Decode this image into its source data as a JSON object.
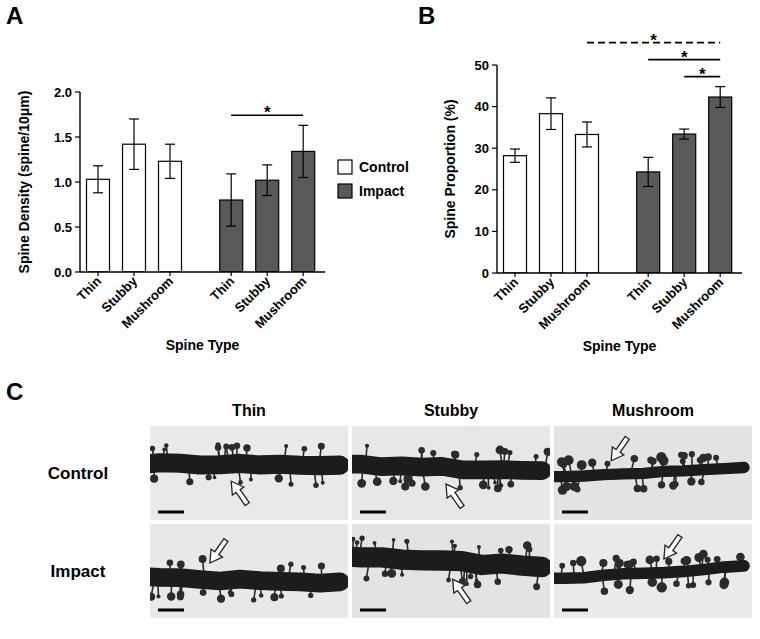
{
  "panel_labels": [
    "A",
    "B"
  ],
  "chart_data": [
    {
      "type": "bar",
      "x_label": "Spine Type",
      "y_label": "Spine Density (spine/10μm)",
      "categories": [
        "Thin",
        "Stubby",
        "Mushroom",
        "Thin",
        "Stubby",
        "Mushroom"
      ],
      "series": [
        {
          "name": "Control",
          "color": "#ffffff",
          "values": [
            1.03,
            1.42,
            1.23,
            null,
            null,
            null
          ],
          "errors": [
            0.15,
            0.28,
            0.19,
            null,
            null,
            null
          ]
        },
        {
          "name": "Impact",
          "color": "#595959",
          "values": [
            null,
            null,
            null,
            0.8,
            1.02,
            1.34
          ],
          "errors": [
            null,
            null,
            null,
            0.29,
            0.17,
            0.29
          ]
        }
      ],
      "ylim": [
        0,
        2
      ],
      "yticks": [
        {
          "value": 0,
          "label": "0.0"
        },
        0.5,
        {
          "value": 1,
          "label": "1.0"
        },
        1.5,
        {
          "value": 2,
          "label": "2.0"
        }
      ],
      "legend": "right",
      "annotations": [
        {
          "from": 3,
          "to": 5,
          "label": "*"
        }
      ]
    },
    {
      "type": "bar",
      "x_label": "Spine Type",
      "y_label": "Spine Proportion (%)",
      "categories": [
        "Thin",
        "Stubby",
        "Mushroom",
        "Thin",
        "Stubby",
        "Mushroom"
      ],
      "series": [
        {
          "color": "#ffffff",
          "values": [
            28.2,
            38.3,
            33.3,
            null,
            null,
            null
          ],
          "errors": [
            1.6,
            3.8,
            3.0,
            null,
            null,
            null
          ]
        },
        {
          "color": "#595959",
          "values": [
            null,
            null,
            null,
            24.3,
            33.4,
            42.3
          ],
          "errors": [
            null,
            null,
            null,
            3.5,
            1.2,
            2.5
          ]
        }
      ],
      "ylim": [
        0,
        50
      ],
      "yticks": [
        0,
        10,
        20,
        30,
        40,
        50
      ],
      "annotations": [
        {
          "from": 2,
          "to": 5,
          "label": "*",
          "line_style": "dashed"
        },
        {
          "from": 3,
          "to": 5,
          "label": "*"
        },
        {
          "from": 4,
          "to": 5,
          "label": "*"
        }
      ]
    }
  ],
  "image_panel": {
    "label": "C",
    "columns": [
      "Thin",
      "Stubby",
      "Mushroom"
    ],
    "rows": [
      "Control",
      "Impact"
    ]
  }
}
